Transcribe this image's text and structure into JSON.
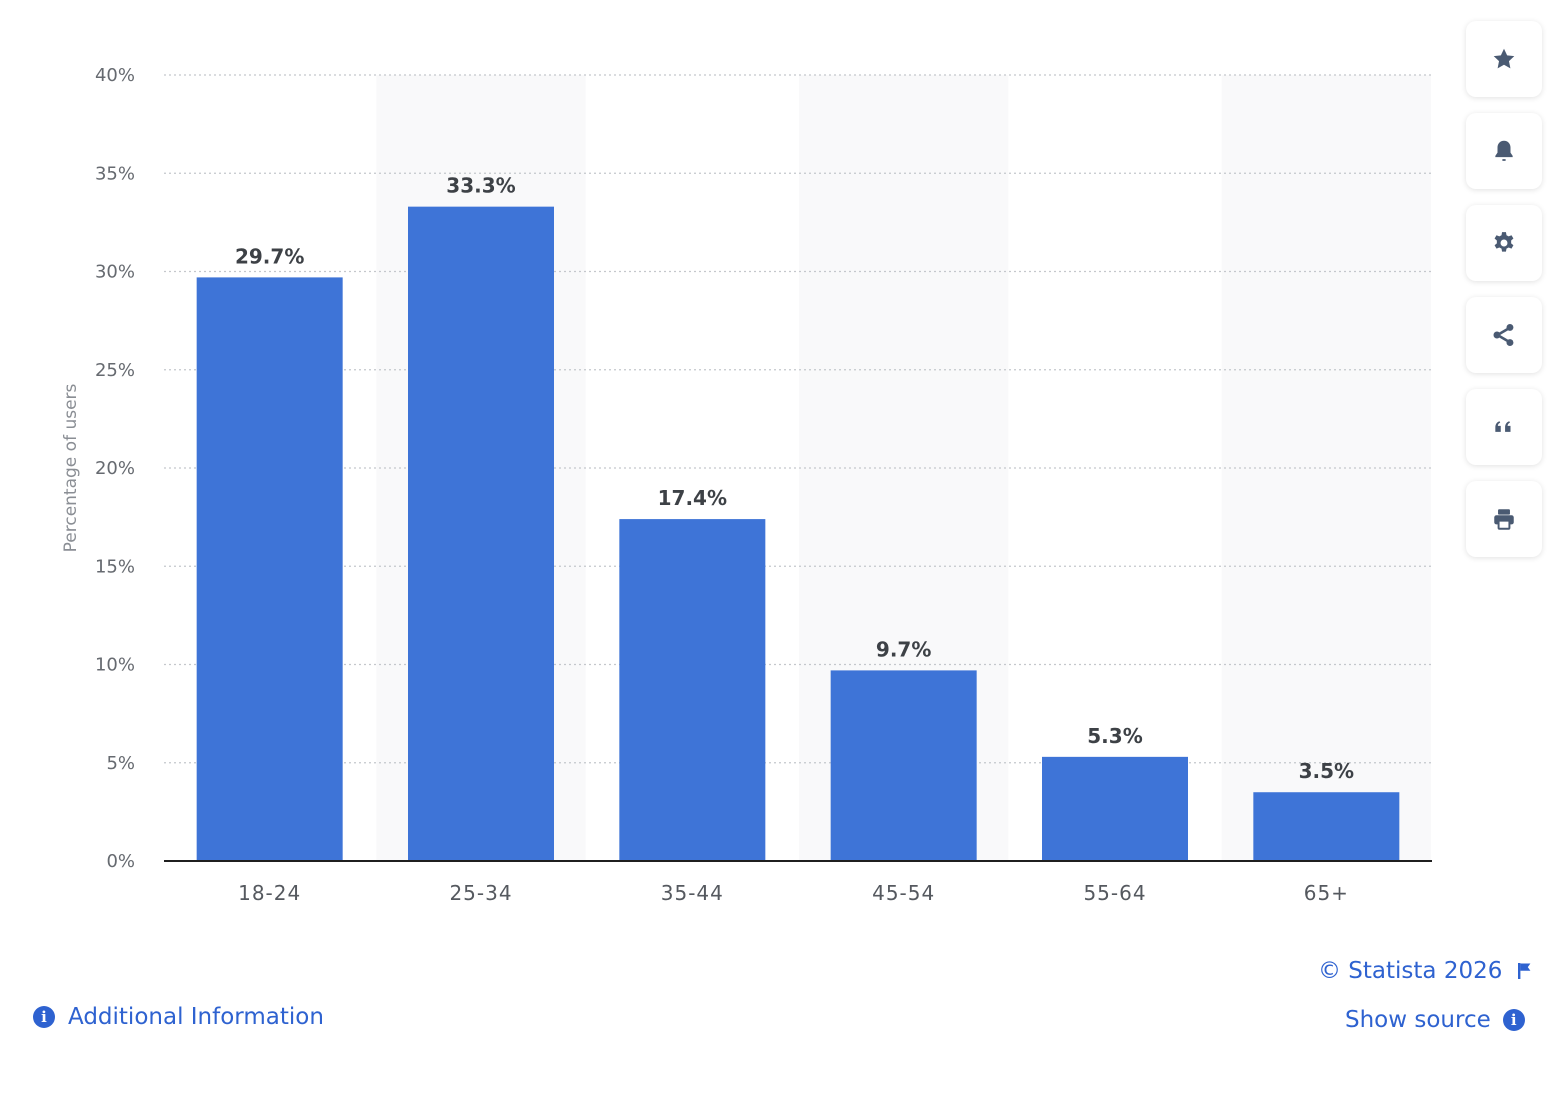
{
  "chart_data": {
    "type": "bar",
    "categories": [
      "18-24",
      "25-34",
      "35-44",
      "45-54",
      "55-64",
      "65+"
    ],
    "values": [
      29.7,
      33.3,
      17.4,
      9.7,
      5.3,
      3.5
    ],
    "value_labels": [
      "29.7%",
      "33.3%",
      "17.4%",
      "9.7%",
      "5.3%",
      "3.5%"
    ],
    "ylabel": "Percentage of users",
    "xlabel": "",
    "ylim": [
      0,
      40
    ],
    "yticks": [
      0,
      5,
      10,
      15,
      20,
      25,
      30,
      35,
      40
    ],
    "ytick_labels": [
      "0%",
      "5%",
      "10%",
      "15%",
      "20%",
      "25%",
      "30%",
      "35%",
      "40%"
    ],
    "grid": true,
    "bar_color": "#3e74d7",
    "alt_band_color": "#f9f9fa"
  },
  "toolbar": {
    "buttons": [
      {
        "name": "favorite-button",
        "icon": "star-icon"
      },
      {
        "name": "notification-button",
        "icon": "bell-icon"
      },
      {
        "name": "settings-button",
        "icon": "gear-icon"
      },
      {
        "name": "share-button",
        "icon": "share-icon"
      },
      {
        "name": "cite-button",
        "icon": "quote-icon"
      },
      {
        "name": "print-button",
        "icon": "printer-icon"
      }
    ],
    "icon_color": "#4a5a72"
  },
  "footer": {
    "copyright": "© Statista 2026",
    "show_source": "Show source",
    "additional_info": "Additional Information",
    "link_color": "#2e62d0"
  }
}
